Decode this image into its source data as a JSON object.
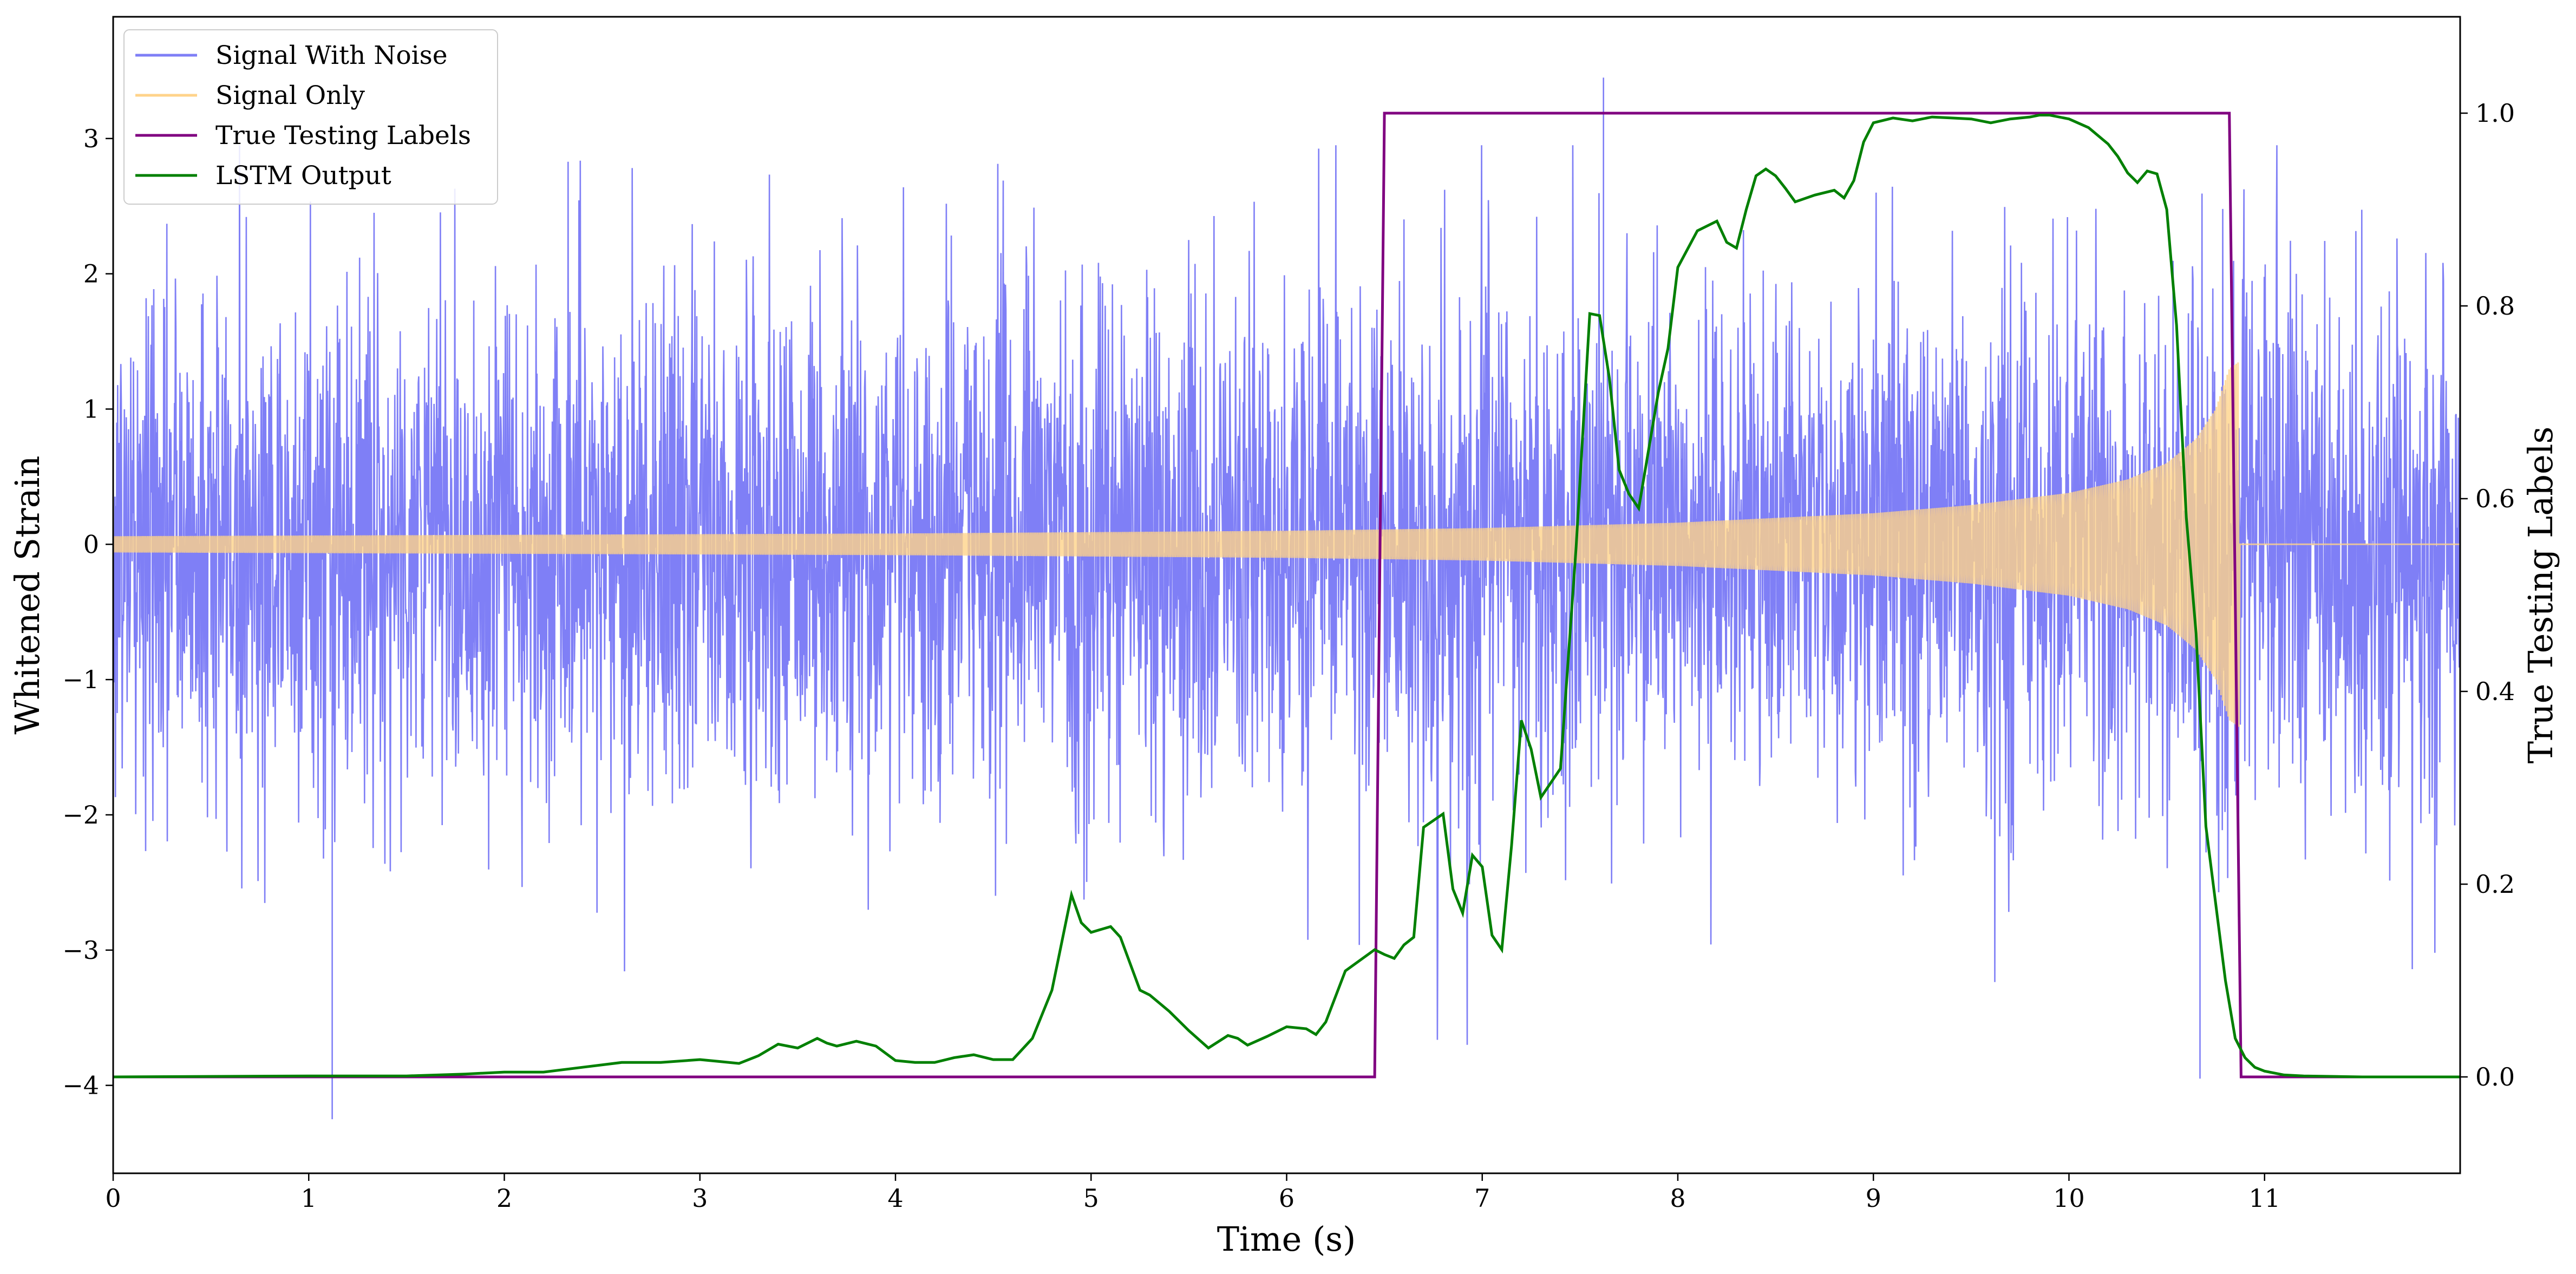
{
  "chart_data": {
    "type": "line",
    "title": "",
    "xlabel": "Time (s)",
    "ylabel": "Whitened Strain",
    "y2label": "True Testing Labels",
    "xlim": [
      0,
      12
    ],
    "ylim": [
      -4.65,
      3.9
    ],
    "y2lim": [
      -0.1,
      1.1
    ],
    "x_ticks": [
      0,
      1,
      2,
      3,
      4,
      5,
      6,
      7,
      8,
      9,
      10,
      11
    ],
    "y_ticks": [
      -4,
      -3,
      -2,
      -1,
      0,
      1,
      2,
      3
    ],
    "y2_ticks": [
      0.0,
      0.2,
      0.4,
      0.6,
      0.8,
      1.0
    ],
    "grid": false,
    "legend_position": "top-left",
    "legend": [
      {
        "label": "Signal With Noise",
        "color": "#7f7ff6"
      },
      {
        "label": "Signal Only",
        "color": "#ffd38a"
      },
      {
        "label": "True Testing Labels",
        "color": "#800080"
      },
      {
        "label": "LSTM Output",
        "color": "#008000"
      }
    ],
    "series": [
      {
        "name": "Signal With Noise",
        "axis": "left",
        "color": "#7f7ff6",
        "description_values": {
          "x_range": [
            0,
            12
          ],
          "typical_amplitude": 1.0,
          "max": 3.45,
          "min": -4.25,
          "notable_spikes": [
            [
              7.62,
              3.45
            ],
            [
              1.12,
              -4.25
            ],
            [
              10.67,
              -3.95
            ],
            [
              4.45,
              -1.6
            ]
          ]
        }
      },
      {
        "name": "Signal Only",
        "axis": "left",
        "color": "#ffd38a",
        "envelope": {
          "x": [
            0,
            2,
            4,
            6,
            7,
            8,
            9,
            9.5,
            10,
            10.3,
            10.5,
            10.65,
            10.75,
            10.82,
            10.87
          ],
          "amplitude": [
            0.06,
            0.07,
            0.08,
            0.1,
            0.12,
            0.16,
            0.23,
            0.29,
            0.38,
            0.48,
            0.6,
            0.78,
            1.0,
            1.3,
            1.35
          ]
        },
        "ends_at": 10.87
      },
      {
        "name": "True Testing Labels",
        "axis": "right",
        "color": "#800080",
        "x": [
          0,
          6.45,
          6.5,
          10.82,
          10.88,
          12
        ],
        "values": [
          0,
          0,
          1,
          1,
          0,
          0
        ]
      },
      {
        "name": "LSTM Output",
        "axis": "right",
        "color": "#008000",
        "x": [
          0,
          1,
          1.5,
          1.8,
          2.0,
          2.2,
          2.4,
          2.6,
          2.8,
          3.0,
          3.1,
          3.2,
          3.3,
          3.4,
          3.5,
          3.6,
          3.65,
          3.7,
          3.8,
          3.9,
          4.0,
          4.1,
          4.2,
          4.3,
          4.4,
          4.5,
          4.6,
          4.7,
          4.8,
          4.9,
          4.95,
          5.0,
          5.1,
          5.15,
          5.25,
          5.3,
          5.4,
          5.5,
          5.6,
          5.7,
          5.75,
          5.8,
          5.9,
          6.0,
          6.1,
          6.15,
          6.2,
          6.3,
          6.45,
          6.5,
          6.55,
          6.6,
          6.65,
          6.7,
          6.8,
          6.85,
          6.9,
          6.95,
          7.0,
          7.05,
          7.1,
          7.15,
          7.2,
          7.25,
          7.3,
          7.4,
          7.48,
          7.55,
          7.6,
          7.65,
          7.7,
          7.75,
          7.8,
          7.9,
          7.95,
          8.0,
          8.1,
          8.2,
          8.25,
          8.3,
          8.35,
          8.4,
          8.45,
          8.5,
          8.55,
          8.6,
          8.7,
          8.8,
          8.85,
          8.9,
          8.95,
          9.0,
          9.1,
          9.2,
          9.3,
          9.4,
          9.5,
          9.6,
          9.7,
          9.8,
          9.85,
          9.9,
          10.0,
          10.1,
          10.2,
          10.25,
          10.3,
          10.35,
          10.4,
          10.45,
          10.5,
          10.55,
          10.6,
          10.65,
          10.7,
          10.8,
          10.85,
          10.9,
          10.95,
          11.0,
          11.1,
          11.2,
          11.5,
          12
        ],
        "values": [
          0,
          0.001,
          0.001,
          0.003,
          0.005,
          0.005,
          0.01,
          0.015,
          0.015,
          0.018,
          0.016,
          0.014,
          0.022,
          0.034,
          0.03,
          0.04,
          0.035,
          0.032,
          0.037,
          0.032,
          0.017,
          0.015,
          0.015,
          0.02,
          0.023,
          0.018,
          0.018,
          0.04,
          0.09,
          0.189,
          0.16,
          0.15,
          0.156,
          0.145,
          0.09,
          0.085,
          0.068,
          0.048,
          0.03,
          0.043,
          0.04,
          0.033,
          0.042,
          0.052,
          0.05,
          0.044,
          0.057,
          0.11,
          0.132,
          0.127,
          0.123,
          0.137,
          0.145,
          0.259,
          0.273,
          0.195,
          0.17,
          0.23,
          0.218,
          0.147,
          0.132,
          0.24,
          0.37,
          0.34,
          0.29,
          0.32,
          0.55,
          0.792,
          0.79,
          0.725,
          0.63,
          0.605,
          0.59,
          0.71,
          0.756,
          0.84,
          0.878,
          0.888,
          0.866,
          0.86,
          0.9,
          0.935,
          0.942,
          0.935,
          0.922,
          0.908,
          0.915,
          0.92,
          0.912,
          0.93,
          0.97,
          0.99,
          0.995,
          0.992,
          0.996,
          0.995,
          0.994,
          0.99,
          0.994,
          0.996,
          0.998,
          0.998,
          0.994,
          0.985,
          0.968,
          0.955,
          0.938,
          0.928,
          0.94,
          0.937,
          0.9,
          0.78,
          0.58,
          0.46,
          0.26,
          0.1,
          0.04,
          0.02,
          0.01,
          0.006,
          0.002,
          0.001,
          0,
          0
        ]
      }
    ]
  }
}
